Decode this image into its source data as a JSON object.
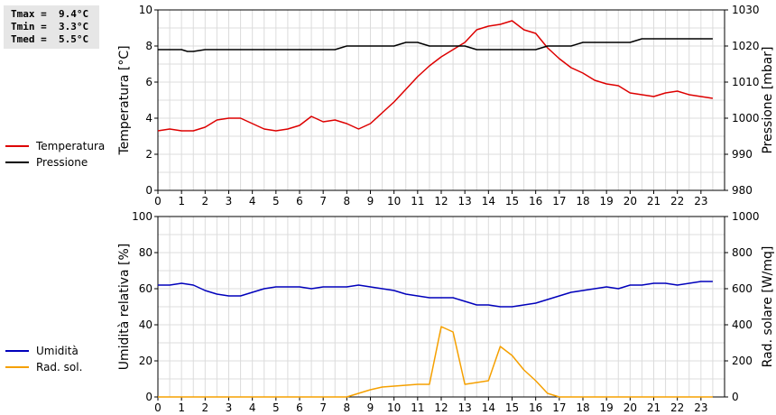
{
  "stats": {
    "tmax": "Tmax =  9.4°C",
    "tmin": "Tmin =  3.3°C",
    "tmed": "Tmed =  5.5°C"
  },
  "legend_top": [
    {
      "label": "Temperatura",
      "color": "#dd0000"
    },
    {
      "label": "Pressione",
      "color": "#000000"
    }
  ],
  "legend_bottom": [
    {
      "label": "Umidità",
      "color": "#0000bb"
    },
    {
      "label": "Rad. sol.",
      "color": "#f5a000"
    }
  ],
  "chart_data": [
    {
      "type": "line",
      "ylabel": "Temperatura [°C]",
      "ylabel_right": "Pressione [mbar]",
      "xlim": [
        0,
        24
      ],
      "ylim": [
        0,
        10
      ],
      "ylim_right": [
        980,
        1030
      ],
      "yticks": [
        0,
        2,
        4,
        6,
        8,
        10
      ],
      "yticks_right": [
        980,
        990,
        1000,
        1010,
        1020,
        1030
      ],
      "xticks": [
        0,
        1,
        2,
        3,
        4,
        5,
        6,
        7,
        8,
        9,
        10,
        11,
        12,
        13,
        14,
        15,
        16,
        17,
        18,
        19,
        20,
        21,
        22,
        23
      ],
      "grid": true,
      "series": [
        {
          "name": "Temperatura",
          "color": "#dd0000",
          "axis": "left",
          "x": [
            0,
            0.5,
            1,
            1.5,
            2,
            2.5,
            3,
            3.5,
            4,
            4.5,
            5,
            5.5,
            6,
            6.5,
            7,
            7.5,
            8,
            8.5,
            9,
            9.5,
            10,
            10.5,
            11,
            11.5,
            12,
            12.5,
            13,
            13.5,
            14,
            14.5,
            15,
            15.5,
            16,
            16.5,
            17,
            17.5,
            18,
            18.5,
            19,
            19.5,
            20,
            20.5,
            21,
            21.5,
            22,
            22.5,
            23,
            23.5
          ],
          "y": [
            3.3,
            3.4,
            3.3,
            3.3,
            3.5,
            3.9,
            4.0,
            4.0,
            3.7,
            3.4,
            3.3,
            3.4,
            3.6,
            4.1,
            3.8,
            3.9,
            3.7,
            3.4,
            3.7,
            4.3,
            4.9,
            5.6,
            6.3,
            6.9,
            7.4,
            7.8,
            8.2,
            8.9,
            9.1,
            9.2,
            9.4,
            8.9,
            8.7,
            7.9,
            7.3,
            6.8,
            6.5,
            6.1,
            5.9,
            5.8,
            5.4,
            5.3,
            5.2,
            5.4,
            5.5,
            5.3,
            5.2,
            5.1
          ]
        },
        {
          "name": "Pressione",
          "color": "#000000",
          "axis": "right",
          "x": [
            0,
            0.5,
            1,
            1.25,
            1.5,
            2,
            2.5,
            3,
            3.5,
            4,
            4.5,
            5,
            5.5,
            6,
            6.5,
            7,
            7.5,
            8,
            8.5,
            9,
            9.5,
            10,
            10.5,
            11,
            11.5,
            12,
            12.5,
            13,
            13.5,
            14,
            14.5,
            15,
            15.5,
            16,
            16.5,
            17,
            17.5,
            18,
            18.5,
            19,
            19.5,
            20,
            20.5,
            21,
            21.5,
            22,
            22.5,
            23,
            23.5
          ],
          "y": [
            1019,
            1019,
            1019,
            1018.5,
            1018.5,
            1019,
            1019,
            1019,
            1019,
            1019,
            1019,
            1019,
            1019,
            1019,
            1019,
            1019,
            1019,
            1020,
            1020,
            1020,
            1020,
            1020,
            1021,
            1021,
            1020,
            1020,
            1020,
            1020,
            1019,
            1019,
            1019,
            1019,
            1019,
            1019,
            1020,
            1020,
            1020,
            1021,
            1021,
            1021,
            1021,
            1021,
            1022,
            1022,
            1022,
            1022,
            1022,
            1022,
            1022
          ]
        }
      ]
    },
    {
      "type": "line",
      "ylabel": "Umidità relativa [%]",
      "ylabel_right": "Rad. solare [W/mq]",
      "xlim": [
        0,
        24
      ],
      "ylim": [
        0,
        100
      ],
      "ylim_right": [
        0,
        1000
      ],
      "yticks": [
        0,
        20,
        40,
        60,
        80,
        100
      ],
      "yticks_right": [
        0,
        200,
        400,
        600,
        800,
        1000
      ],
      "xticks": [
        0,
        1,
        2,
        3,
        4,
        5,
        6,
        7,
        8,
        9,
        10,
        11,
        12,
        13,
        14,
        15,
        16,
        17,
        18,
        19,
        20,
        21,
        22,
        23
      ],
      "grid": true,
      "series": [
        {
          "name": "Umidità",
          "color": "#0000bb",
          "axis": "left",
          "x": [
            0,
            0.5,
            1,
            1.5,
            2,
            2.5,
            3,
            3.5,
            4,
            4.5,
            5,
            5.5,
            6,
            6.5,
            7,
            7.5,
            8,
            8.5,
            9,
            9.5,
            10,
            10.5,
            11,
            11.5,
            12,
            12.5,
            13,
            13.5,
            14,
            14.5,
            15,
            15.5,
            16,
            16.5,
            17,
            17.5,
            18,
            18.5,
            19,
            19.5,
            20,
            20.5,
            21,
            21.5,
            22,
            22.5,
            23,
            23.5
          ],
          "y": [
            62,
            62,
            63,
            62,
            59,
            57,
            56,
            56,
            58,
            60,
            61,
            61,
            61,
            60,
            61,
            61,
            61,
            62,
            61,
            60,
            59,
            57,
            56,
            55,
            55,
            55,
            53,
            51,
            51,
            50,
            50,
            51,
            52,
            54,
            56,
            58,
            59,
            60,
            61,
            60,
            62,
            62,
            63,
            63,
            62,
            63,
            64,
            64
          ]
        },
        {
          "name": "Rad. sol.",
          "color": "#f5a000",
          "axis": "right",
          "x": [
            0,
            1,
            2,
            3,
            4,
            5,
            6,
            7,
            8,
            8.5,
            9,
            9.5,
            10,
            10.5,
            11,
            11.5,
            12,
            12.5,
            13,
            13.5,
            14,
            14.5,
            15,
            15.5,
            16,
            16.5,
            17,
            18,
            19,
            20,
            21,
            22,
            23,
            23.5
          ],
          "y": [
            0,
            0,
            0,
            0,
            0,
            0,
            0,
            0,
            0,
            20,
            40,
            55,
            60,
            65,
            70,
            70,
            390,
            360,
            70,
            80,
            90,
            280,
            230,
            150,
            90,
            20,
            0,
            0,
            0,
            0,
            0,
            0,
            0,
            0
          ]
        }
      ]
    }
  ]
}
